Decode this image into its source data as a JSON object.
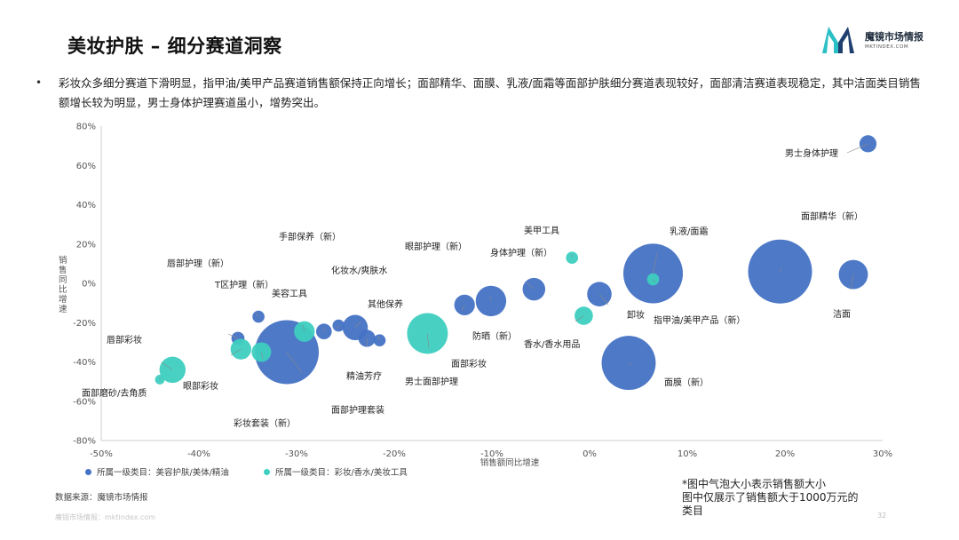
{
  "page": {
    "title": "美妆护肤 – 细分赛道洞察",
    "logo_name": "魔镜市场情报",
    "logo_domain": "MKTINDEX.COM",
    "summary": "彩妆众多细分赛道下滑明显，指甲油/美甲产品赛道销售额保持正向增长；面部精华、面膜、乳液/面霜等面部护肤细分赛道表现较好，面部清洁赛道表现稳定，其中洁面类目销售额增长较为明显，男士身体护理赛道虽小，增势突出。",
    "source": "数据来源：魔镜市场情报",
    "note_lines": [
      "*图中气泡大小表示销售额大小",
      "图中仅展示了销售额大于1000万元的",
      "类目"
    ],
    "footer": "魔镜市场情报：mktindex.com",
    "page_number": "32"
  },
  "colors": {
    "blue": "#4472C4",
    "teal": "#3ECFC0",
    "axis": "#cfcfcf",
    "tick_text": "#555555",
    "logo_teal": "#2bbfc6",
    "logo_navy": "#1f3f6e"
  },
  "chart_data": {
    "type": "scatter",
    "subtype": "bubble",
    "xlabel": "销售额同比增速",
    "ylabel": "销售同比增速",
    "xlim": [
      -0.5,
      0.3
    ],
    "ylim": [
      -0.8,
      0.8
    ],
    "xticks": [
      -0.5,
      -0.4,
      -0.3,
      -0.2,
      -0.1,
      0,
      0.1,
      0.2,
      0.3
    ],
    "yticks": [
      -0.8,
      -0.6,
      -0.4,
      -0.2,
      0,
      0.2,
      0.4,
      0.6,
      0.8
    ],
    "xtick_labels": [
      "-50%",
      "-40%",
      "-30%",
      "-20%",
      "-10%",
      "0%",
      "10%",
      "20%",
      "30%"
    ],
    "ytick_labels": [
      "-80%",
      "-60%",
      "-40%",
      "-20%",
      "0%",
      "20%",
      "40%",
      "60%",
      "80%"
    ],
    "grid": false,
    "legend_position": "bottom-left",
    "size_meaning": "销售额大小",
    "series": [
      {
        "name": "所属一级类目：美容护肤/美体/精油",
        "color": "blue",
        "points": [
          {
            "label": "男士身体护理",
            "x": 0.285,
            "y": 0.71,
            "size": 0.05
          },
          {
            "label": "面部精华（新）",
            "x": 0.195,
            "y": 0.06,
            "size": 1.0
          },
          {
            "label": "洁面",
            "x": 0.27,
            "y": 0.045,
            "size": 0.18
          },
          {
            "label": "乳液/面霜",
            "x": 0.065,
            "y": 0.05,
            "size": 0.86
          },
          {
            "label": "面膜（新）",
            "x": 0.04,
            "y": -0.405,
            "size": 0.7
          },
          {
            "label": "卸妆",
            "x": 0.01,
            "y": -0.055,
            "size": 0.12
          },
          {
            "label": "身体护理（新）",
            "x": -0.057,
            "y": -0.03,
            "size": 0.1
          },
          {
            "label": "眼部护理（新）",
            "x": -0.101,
            "y": -0.09,
            "size": 0.2
          },
          {
            "label": "防晒（新）",
            "x": -0.128,
            "y": -0.11,
            "size": 0.08
          },
          {
            "label": "其他保养",
            "x": -0.215,
            "y": -0.29,
            "size": 0.02
          },
          {
            "label": "男士面部护理",
            "x": -0.228,
            "y": -0.28,
            "size": 0.05
          },
          {
            "label": "化妆水/爽肤水",
            "x": -0.24,
            "y": -0.225,
            "size": 0.13
          },
          {
            "label": "精油芳疗",
            "x": -0.257,
            "y": -0.215,
            "size": 0.02
          },
          {
            "label": "手部保养（新）",
            "x": -0.272,
            "y": -0.245,
            "size": 0.04
          },
          {
            "label": "面部护理套装",
            "x": -0.31,
            "y": -0.35,
            "size": 1.0
          },
          {
            "label": "T区护理（新）",
            "x": -0.339,
            "y": -0.17,
            "size": 0.02
          },
          {
            "label": "唇部护理（新）",
            "x": -0.36,
            "y": -0.28,
            "size": 0.025
          }
        ]
      },
      {
        "name": "所属一级类目：彩妆/香水/美妆工具",
        "color": "teal",
        "points": [
          {
            "label": "美甲工具",
            "x": -0.018,
            "y": 0.13,
            "size": 0.02
          },
          {
            "label": "指甲油/美甲产品（新）",
            "x": 0.065,
            "y": 0.02,
            "size": 0.02
          },
          {
            "label": "香水/香水用品",
            "x": -0.006,
            "y": -0.165,
            "size": 0.06
          },
          {
            "label": "面部彩妆",
            "x": -0.166,
            "y": -0.255,
            "size": 0.38
          },
          {
            "label": "美容工具",
            "x": -0.292,
            "y": -0.245,
            "size": 0.08
          },
          {
            "label": "彩妆套装（新）",
            "x": -0.336,
            "y": -0.35,
            "size": 0.07
          },
          {
            "label": "眼部彩妆",
            "x": -0.357,
            "y": -0.335,
            "size": 0.08
          },
          {
            "label": "唇部彩妆",
            "x": -0.427,
            "y": -0.44,
            "size": 0.14
          },
          {
            "label": "面部磨砂/去角质",
            "x": -0.44,
            "y": -0.49,
            "size": 0.01
          }
        ]
      }
    ]
  }
}
